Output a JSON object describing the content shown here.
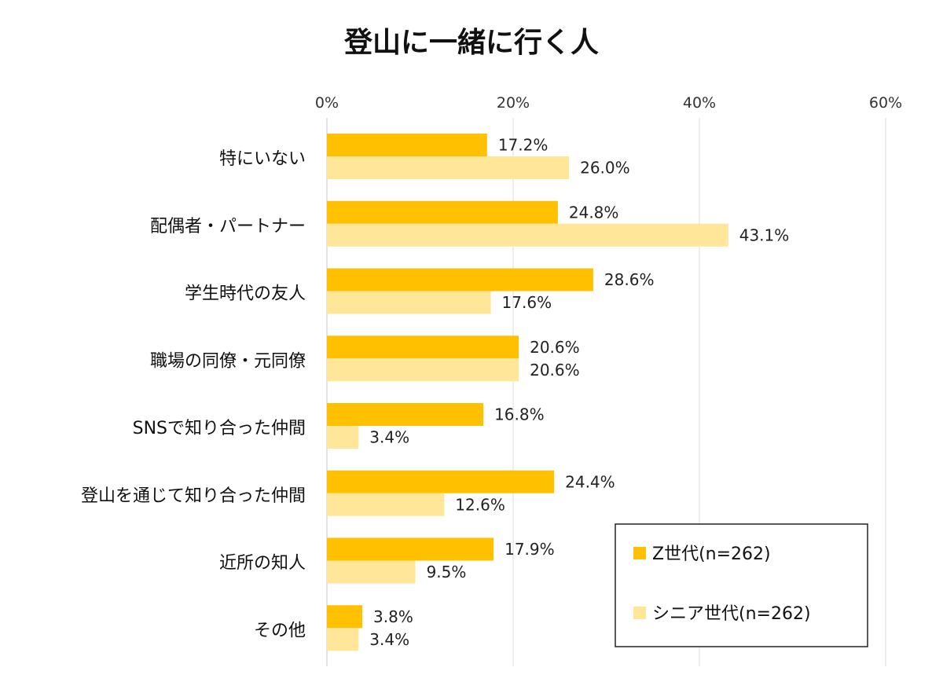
{
  "chart_data": {
    "type": "bar",
    "orientation": "horizontal",
    "title": "登山に一緒に行く人",
    "xlabel": "",
    "ylabel": "",
    "xlim": [
      0,
      60
    ],
    "xticks": [
      0,
      20,
      40,
      60
    ],
    "xtick_labels": [
      "0%",
      "20%",
      "40%",
      "60%"
    ],
    "grid": true,
    "legend_position": "bottom-right",
    "categories": [
      "特にいない",
      "配偶者・パートナー",
      "学生時代の友人",
      "職場の同僚・元同僚",
      "SNSで知り合った仲間",
      "登山を通じて知り合った仲間",
      "近所の知人",
      "その他"
    ],
    "series": [
      {
        "name": "Z世代(n=262)",
        "color": "#FFC000",
        "values": [
          17.2,
          24.8,
          28.6,
          20.6,
          16.8,
          24.4,
          17.9,
          3.8
        ],
        "value_labels": [
          "17.2%",
          "24.8%",
          "28.6%",
          "20.6%",
          "16.8%",
          "24.4%",
          "17.9%",
          "3.8%"
        ]
      },
      {
        "name": "シニア世代(n=262)",
        "color": "#FFE699",
        "values": [
          26.0,
          43.1,
          17.6,
          20.6,
          3.4,
          12.6,
          9.5,
          3.4
        ],
        "value_labels": [
          "26.0%",
          "43.1%",
          "17.6%",
          "20.6%",
          "3.4%",
          "12.6%",
          "9.5%",
          "3.4%"
        ]
      }
    ]
  }
}
